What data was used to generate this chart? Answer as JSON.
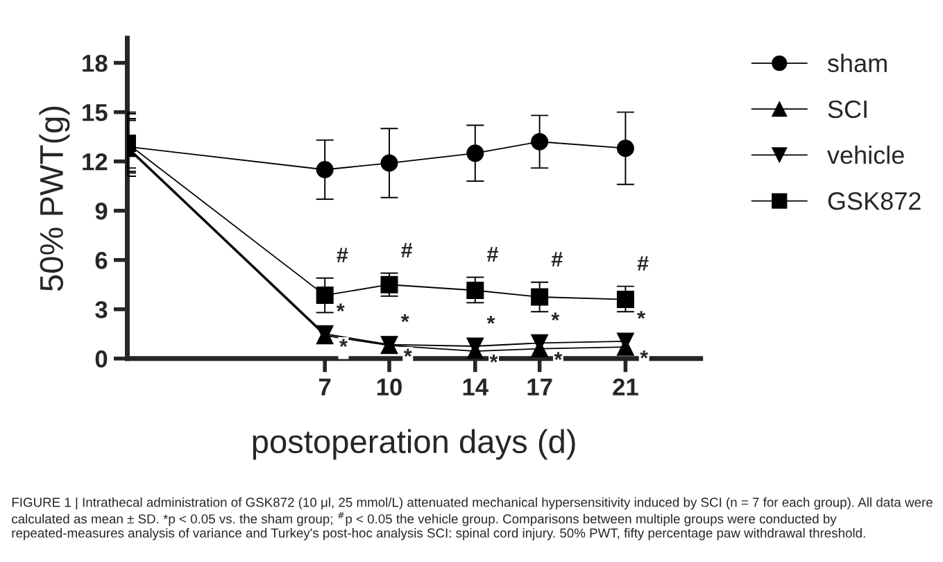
{
  "chart_data": {
    "type": "line",
    "xlabel": "postoperation days (d)",
    "ylabel": "50% PWT(g)",
    "xlim": [
      -2.2,
      24.5
    ],
    "xticks": [
      7,
      10,
      14,
      17,
      21
    ],
    "ylim": [
      0,
      19.5
    ],
    "yticks": [
      0,
      3,
      6,
      9,
      12,
      15,
      18
    ],
    "grid": false,
    "legend": "right",
    "line_style": "solid",
    "series": [
      {
        "name": "sham",
        "color": "#000000",
        "marker": "circle",
        "x": [
          -2.2,
          7,
          10,
          14,
          17,
          21
        ],
        "values": [
          12.9,
          11.5,
          11.9,
          12.5,
          13.2,
          12.8
        ],
        "errors": [
          [
            11.1,
            14.9
          ],
          [
            9.7,
            13.3
          ],
          [
            9.8,
            14.0
          ],
          [
            10.8,
            14.2
          ],
          [
            11.6,
            14.8
          ],
          [
            10.6,
            15.0
          ]
        ]
      },
      {
        "name": "SCI",
        "color": "#000000",
        "marker": "triangle",
        "x": [
          -2.2,
          7,
          10,
          14,
          17,
          21
        ],
        "values": [
          12.8,
          1.4,
          0.8,
          0.45,
          0.6,
          0.7
        ],
        "errors": [
          [
            11.3,
            14.5
          ],
          null,
          null,
          null,
          null,
          null
        ]
      },
      {
        "name": "vehicle",
        "color": "#000000",
        "marker": "triangle_down",
        "x": [
          -2.2,
          7,
          10,
          14,
          17,
          21
        ],
        "values": [
          12.9,
          1.5,
          0.85,
          0.75,
          0.95,
          1.05
        ],
        "errors": [
          [
            11.4,
            14.6
          ],
          null,
          null,
          null,
          null,
          null
        ]
      },
      {
        "name": "GSK872",
        "color": "#000000",
        "marker": "square",
        "x": [
          -2.2,
          7,
          10,
          14,
          17,
          21
        ],
        "values": [
          13.1,
          3.85,
          4.5,
          4.15,
          3.75,
          3.6
        ],
        "errors": [
          [
            11.6,
            15.0
          ],
          [
            2.8,
            4.9
          ],
          [
            3.8,
            5.2
          ],
          [
            3.4,
            4.95
          ],
          [
            2.85,
            4.65
          ],
          [
            2.85,
            4.4
          ]
        ]
      }
    ],
    "annotations": [
      {
        "text": "#",
        "x": 7,
        "y": 3.85
      },
      {
        "text": "#",
        "x": 10,
        "y": 4.5
      },
      {
        "text": "#",
        "x": 14,
        "y": 4.15
      },
      {
        "text": "#",
        "x": 17,
        "y": 3.75
      },
      {
        "text": "#",
        "x": 21,
        "y": 3.6
      },
      {
        "text": "*",
        "x": 7,
        "y": 1.5
      },
      {
        "text": "*",
        "x": 10,
        "y": 0.85
      },
      {
        "text": "*",
        "x": 14,
        "y": 0.75
      },
      {
        "text": "*",
        "x": 17,
        "y": 0.95
      },
      {
        "text": "*",
        "x": 21,
        "y": 1.05
      },
      {
        "text": "*",
        "x": 7,
        "y": 1.4
      },
      {
        "text": "*",
        "x": 10,
        "y": 0.8
      },
      {
        "text": "*",
        "x": 14,
        "y": 0.45
      },
      {
        "text": "*",
        "x": 17,
        "y": 0.6
      },
      {
        "text": "*",
        "x": 21,
        "y": 0.7
      },
      "FIGURE 1 | Intrathecal administration of GSK872 (10 μl, 25 mmol/L) attenuated mechanical hypersensitivity induced by SCI (n = 7 for each group). All data were calculated as mean ± SD. *p < 0.05 vs. the sham group; $^{#}$p < 0.05 the vehicle group. Comparisons between multiple groups were conducted by repeated-measures analysis of variance and Turkey's post-hoc analysis SCI: spinal cord injury. 50% PWT, fifty percentage paw withdrawal threshold."
    ]
  }
}
